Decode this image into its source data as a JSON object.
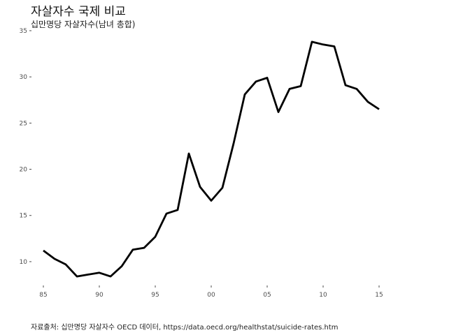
{
  "chart_data": {
    "type": "line",
    "title": "자살자수 국제 비교",
    "subtitle": "십만명당 자살자수(남녀 총합)",
    "caption": "자료출처: 십만명당 자살자수 OECD 데이터, https://data.oecd.org/healthstat/suicide-rates.htm",
    "xlabel": "",
    "ylabel": "",
    "x": [
      1985,
      1986,
      1987,
      1988,
      1989,
      1990,
      1991,
      1992,
      1993,
      1994,
      1995,
      1996,
      1997,
      1998,
      1999,
      2000,
      2001,
      2002,
      2003,
      2004,
      2005,
      2006,
      2007,
      2008,
      2009,
      2010,
      2011,
      2012,
      2013,
      2014,
      2015
    ],
    "series": [
      {
        "values": [
          11.2,
          10.3,
          9.7,
          8.4,
          8.6,
          8.8,
          8.4,
          9.5,
          11.3,
          11.5,
          12.7,
          15.2,
          15.6,
          21.7,
          18.1,
          16.6,
          18.0,
          22.8,
          28.1,
          29.5,
          29.9,
          26.2,
          28.7,
          29.0,
          33.8,
          33.5,
          33.3,
          29.1,
          28.7,
          27.3,
          26.5
        ],
        "color": "#000000"
      }
    ],
    "xlim": [
      1984,
      2020
    ],
    "ylim": [
      7.5,
      35.3
    ],
    "x_ticks": [
      1985,
      1990,
      1995,
      2000,
      2005,
      2010,
      2015
    ],
    "x_tick_labels": [
      "85",
      "90",
      "95",
      "00",
      "05",
      "10",
      "15"
    ],
    "y_ticks": [
      10,
      15,
      20,
      25,
      30,
      35
    ],
    "y_tick_labels": [
      "10",
      "15",
      "20",
      "25",
      "30",
      "35"
    ],
    "grid": false,
    "legend": "none"
  }
}
